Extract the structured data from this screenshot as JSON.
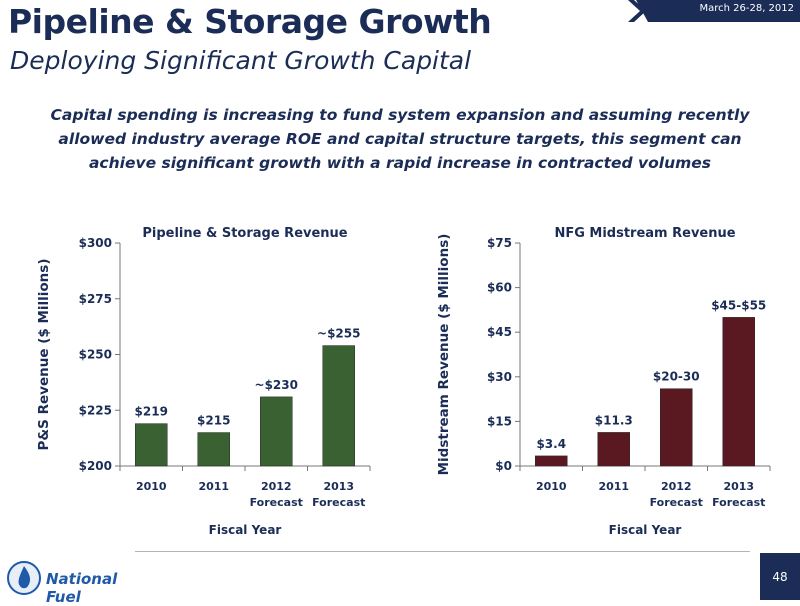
{
  "header": {
    "title": "Pipeline & Storage Growth",
    "subtitle": "Deploying Significant Growth Capital",
    "date": "March 26-28, 2012",
    "lead": "Capital spending is increasing to fund system expansion and assuming recently allowed industry average ROE and capital structure targets, this segment can achieve significant growth with a rapid increase in contracted volumes"
  },
  "footer": {
    "logo_text": "National Fuel",
    "page_number": "48"
  },
  "colors": {
    "navy": "#1b2d56",
    "ps_bar": "#3a6131",
    "mid_bar": "#5a1820"
  },
  "chart_data": [
    {
      "type": "bar",
      "title": "Pipeline & Storage Revenue",
      "xlabel": "Fiscal Year",
      "ylabel": "P&S Revenue ($ Millions)",
      "categories": [
        "2010",
        "2011",
        "2012\nForecast",
        "2013\nForecast"
      ],
      "values": [
        219,
        215,
        231,
        254
      ],
      "data_labels": [
        "$219",
        "$215",
        "~$230",
        "~$255"
      ],
      "ylim": [
        200,
        300
      ],
      "yticks": [
        200,
        225,
        250,
        275,
        300
      ],
      "ytick_labels": [
        "$200",
        "$225",
        "$250",
        "$275",
        "$300"
      ],
      "grid": false,
      "color": "#3a6131"
    },
    {
      "type": "bar",
      "title": "NFG Midstream Revenue",
      "xlabel": "Fiscal Year",
      "ylabel": "Midstream Revenue ($ Millions)",
      "categories": [
        "2010",
        "2011",
        "2012\nForecast",
        "2013\nForecast"
      ],
      "values": [
        3.4,
        11.3,
        26,
        50
      ],
      "data_labels": [
        "$3.4",
        "$11.3",
        "$20-30",
        "$45-$55"
      ],
      "ylim": [
        0,
        75
      ],
      "yticks": [
        0,
        15,
        30,
        45,
        60,
        75
      ],
      "ytick_labels": [
        "$0",
        "$15",
        "$30",
        "$45",
        "$60",
        "$75"
      ],
      "grid": false,
      "color": "#5a1820"
    }
  ]
}
